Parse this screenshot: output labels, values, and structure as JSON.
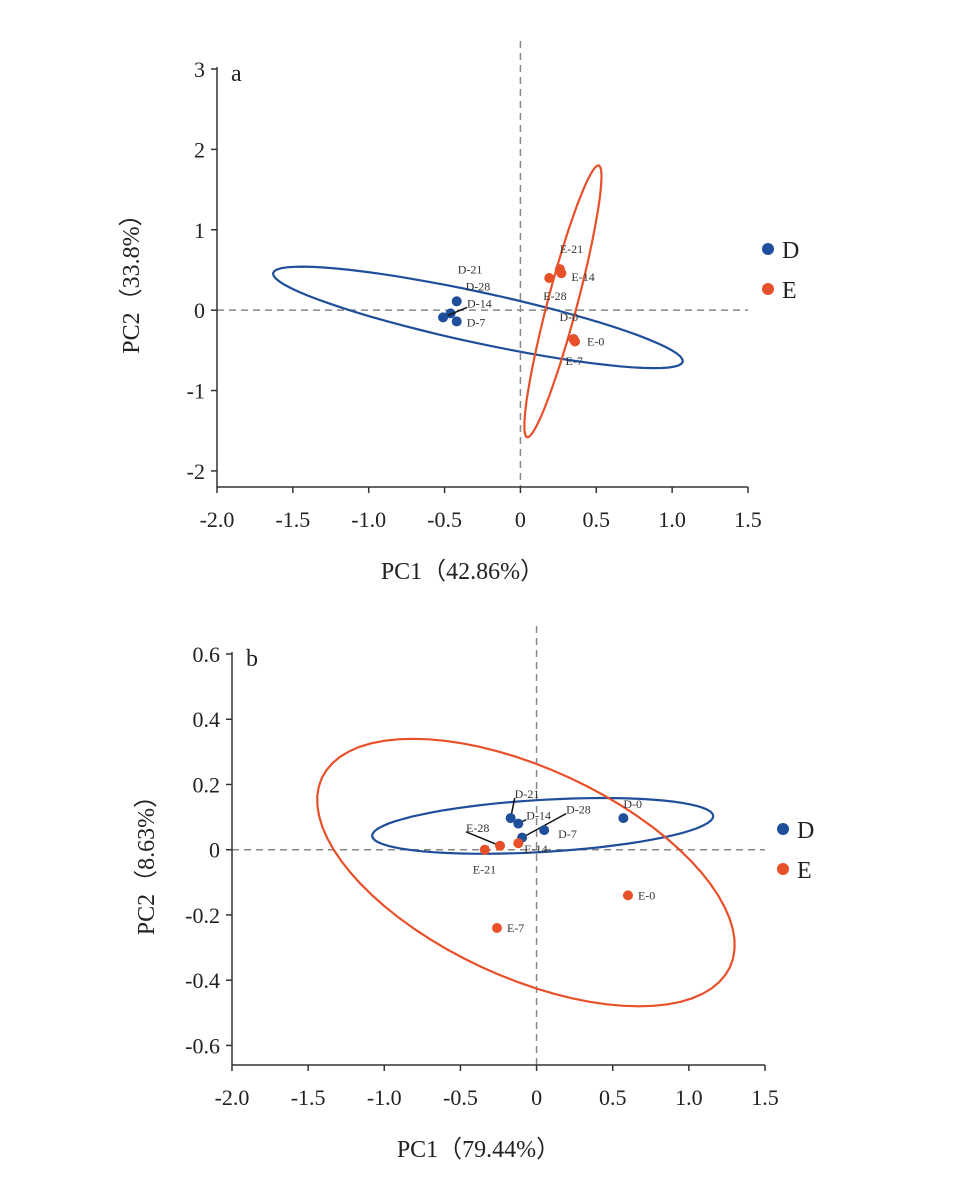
{
  "chart_data": [
    {
      "type": "scatter",
      "panel_label": "a",
      "xlabel": "PC1（42.86%）",
      "ylabel": "PC2（33.8%）",
      "xlim": [
        -2.0,
        1.5
      ],
      "ylim": [
        -2.2,
        3
      ],
      "xticks": [
        "-2.0",
        "-1.5",
        "-1.0",
        "-0.5",
        "0",
        "0.5",
        "1.0",
        "1.5"
      ],
      "xtick_values": [
        -2.0,
        -1.5,
        -1.0,
        -0.5,
        0,
        0.5,
        1.0,
        1.5
      ],
      "yticks": [
        "3",
        "2",
        "1",
        "0",
        "-1",
        "-2"
      ],
      "ytick_values": [
        3,
        2,
        1,
        0,
        -1,
        -2
      ],
      "legend": {
        "position": "right",
        "entries": [
          {
            "name": "D",
            "color": "#1f4e9a"
          },
          {
            "name": "E",
            "color": "#e8502a"
          }
        ]
      },
      "series": [
        {
          "name": "D",
          "color": "#1f4e9a",
          "points": [
            {
              "label": "D-21",
              "x": -0.42,
              "y": 0.11
            },
            {
              "label": "D-28",
              "x": -0.46,
              "y": -0.04
            },
            {
              "label": "D-14",
              "x": -0.51,
              "y": -0.09
            },
            {
              "label": "D-7",
              "x": -0.42,
              "y": -0.14
            },
            {
              "label": "D-0",
              "x": 0.35,
              "y": -0.36
            }
          ],
          "ellipse": {
            "center": [
              -0.28,
              -0.09
            ],
            "u": [
              1.35,
              -0.55
            ],
            "v": [
              0.03,
              0.31
            ]
          }
        },
        {
          "name": "E",
          "color": "#e8502a",
          "points": [
            {
              "label": "E-21",
              "x": 0.26,
              "y": 0.51
            },
            {
              "label": "E-14",
              "x": 0.27,
              "y": 0.46
            },
            {
              "label": "E-28",
              "x": 0.19,
              "y": 0.4
            },
            {
              "label": "E-0",
              "x": 0.36,
              "y": -0.39
            },
            {
              "label": "E-7",
              "x": 0.35,
              "y": -0.36
            }
          ],
          "ellipse": {
            "center": [
              0.28,
              0.11
            ],
            "u": [
              0.23,
              1.69
            ],
            "v": [
              0.108,
              0.054
            ]
          }
        }
      ]
    },
    {
      "type": "scatter",
      "panel_label": "b",
      "xlabel": "PC1（79.44%）",
      "ylabel": "PC2（8.63%）",
      "xlim": [
        -2.0,
        1.5
      ],
      "ylim": [
        -0.66,
        0.6
      ],
      "xticks": [
        "-2.0",
        "-1.5",
        "-1.0",
        "-0.5",
        "0",
        "0.5",
        "1.0",
        "1.5"
      ],
      "xtick_values": [
        -2.0,
        -1.5,
        -1.0,
        -0.5,
        0,
        0.5,
        1.0,
        1.5
      ],
      "yticks": [
        "0.6",
        "0.4",
        "0.2",
        "0",
        "-0.2",
        "-0.4",
        "-0.6"
      ],
      "ytick_values": [
        0.6,
        0.4,
        0.2,
        0,
        -0.2,
        -0.4,
        -0.6
      ],
      "legend": {
        "position": "right",
        "entries": [
          {
            "name": "D",
            "color": "#1f4e9a"
          },
          {
            "name": "E",
            "color": "#e8502a"
          }
        ]
      },
      "series": [
        {
          "name": "D",
          "color": "#1f4e9a",
          "points": [
            {
              "label": "D-21",
              "x": -0.17,
              "y": 0.097
            },
            {
              "label": "D-14",
              "x": -0.12,
              "y": 0.08
            },
            {
              "label": "D-28",
              "x": -0.095,
              "y": 0.037
            },
            {
              "label": "D-7",
              "x": 0.05,
              "y": 0.06
            },
            {
              "label": "D-0",
              "x": 0.57,
              "y": 0.097
            }
          ],
          "ellipse": {
            "center": [
              0.04,
              0.073
            ],
            "u": [
              1.12,
              0.03
            ],
            "v": [
              0,
              0.08
            ]
          }
        },
        {
          "name": "E",
          "color": "#e8502a",
          "points": [
            {
              "label": "E-14",
              "x": -0.12,
              "y": 0.02
            },
            {
              "label": "E-28",
              "x": -0.24,
              "y": 0.012
            },
            {
              "label": "E-21",
              "x": -0.34,
              "y": 0.0
            },
            {
              "label": "E-0",
              "x": 0.6,
              "y": -0.14
            },
            {
              "label": "E-7",
              "x": -0.26,
              "y": -0.24
            }
          ],
          "ellipse": {
            "center": [
              -0.07,
              -0.07
            ],
            "u": [
              1.34,
              -0.29
            ],
            "v": [
              -0.29,
              -0.29
            ]
          }
        }
      ]
    }
  ]
}
